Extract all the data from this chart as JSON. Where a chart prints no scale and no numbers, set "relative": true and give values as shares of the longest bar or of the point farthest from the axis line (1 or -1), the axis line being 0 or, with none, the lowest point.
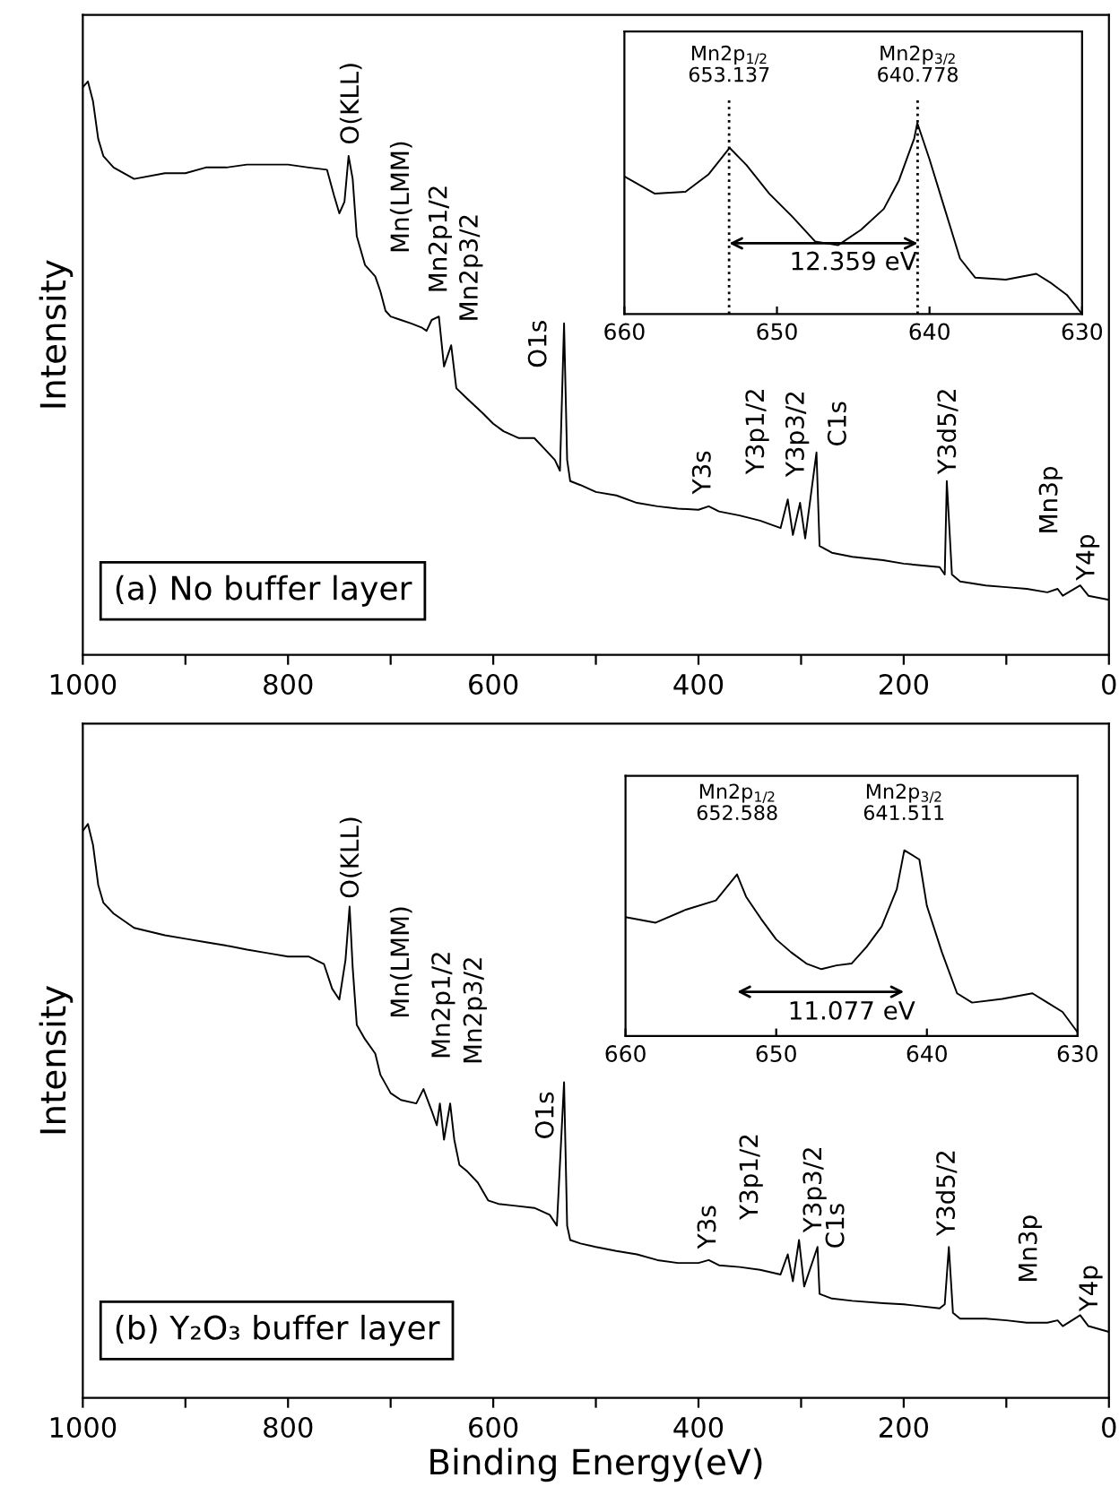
{
  "chart_data": [
    {
      "type": "line",
      "relative": true,
      "ylabel": "Intensity",
      "xlim": [
        1000,
        0
      ],
      "xticks": [
        1000,
        {
          "value": 900,
          "label": null
        },
        800,
        {
          "value": 700,
          "label": null
        },
        600,
        {
          "value": 500,
          "label": null
        },
        400,
        {
          "value": 300,
          "label": null
        },
        200,
        {
          "value": 100,
          "label": null
        },
        0
      ],
      "tick_labels": "x",
      "grid": false,
      "legend": false,
      "series": [
        {
          "color": "#000000",
          "x": [
            1000,
            995,
            990,
            985,
            980,
            970,
            950,
            920,
            900,
            880,
            860,
            840,
            820,
            800,
            780,
            762,
            755,
            750,
            745,
            741,
            737,
            733,
            725,
            715,
            710,
            705,
            700,
            690,
            680,
            670,
            665,
            660,
            653,
            648,
            641,
            636,
            625,
            610,
            600,
            590,
            575,
            560,
            550,
            540,
            535,
            531,
            528,
            525,
            515,
            500,
            480,
            460,
            440,
            420,
            400,
            390,
            380,
            360,
            340,
            320,
            313,
            308,
            301,
            296,
            285,
            282,
            270,
            250,
            220,
            200,
            165,
            160,
            158,
            153,
            145,
            120,
            100,
            80,
            60,
            50,
            45,
            28,
            20,
            0
          ],
          "values": [
            0.99,
            1.0,
            0.965,
            0.9,
            0.87,
            0.85,
            0.83,
            0.84,
            0.84,
            0.85,
            0.85,
            0.855,
            0.855,
            0.855,
            0.85,
            0.846,
            0.8,
            0.77,
            0.79,
            0.87,
            0.83,
            0.73,
            0.68,
            0.66,
            0.634,
            0.6,
            0.59,
            0.584,
            0.578,
            0.571,
            0.565,
            0.584,
            0.59,
            0.503,
            0.54,
            0.465,
            0.446,
            0.421,
            0.403,
            0.39,
            0.378,
            0.378,
            0.359,
            0.34,
            0.321,
            0.578,
            0.34,
            0.303,
            0.296,
            0.284,
            0.278,
            0.265,
            0.259,
            0.255,
            0.253,
            0.259,
            0.25,
            0.243,
            0.234,
            0.221,
            0.271,
            0.209,
            0.265,
            0.203,
            0.353,
            0.19,
            0.178,
            0.171,
            0.165,
            0.159,
            0.153,
            0.14,
            0.303,
            0.14,
            0.128,
            0.121,
            0.118,
            0.115,
            0.109,
            0.115,
            0.103,
            0.121,
            0.103,
            0.096
          ]
        }
      ],
      "annotations": [
        "(a) No buffer layer",
        "O(KLL)",
        "Mn(LMM)",
        "Mn2p1/2",
        "Mn2p3/2",
        "O1s",
        "Y3s",
        "Y3p1/2",
        "Y3p3/2",
        "C1s",
        "Y3d5/2",
        "Mn3p",
        "Y4p"
      ]
    },
    {
      "type": "line",
      "relative": true,
      "xlim": [
        660,
        630
      ],
      "xticks": [
        660,
        650,
        640,
        630
      ],
      "tick_labels": "x",
      "grid": false,
      "legend": false,
      "series": [
        {
          "color": "#000000",
          "x": [
            660,
            658,
            656,
            654.5,
            653.1,
            652,
            650.5,
            649,
            647.5,
            646,
            644.5,
            643,
            642,
            641,
            640.8,
            640,
            639,
            638,
            637,
            635,
            633,
            632,
            631,
            630
          ],
          "values": [
            0.72,
            0.63,
            0.64,
            0.73,
            0.87,
            0.78,
            0.63,
            0.51,
            0.38,
            0.36,
            0.44,
            0.55,
            0.7,
            0.92,
            1.0,
            0.81,
            0.55,
            0.29,
            0.19,
            0.18,
            0.21,
            0.16,
            0.1,
            0.0
          ]
        }
      ],
      "ref_lines": [
        {
          "axis": "x",
          "value": 653.137,
          "line_style": "dotted",
          "color": "#000000"
        },
        {
          "axis": "x",
          "value": 640.778,
          "line_style": "dotted",
          "color": "#000000"
        }
      ],
      "annotations": [
        "Mn2p$_{1/2}$\n653.137",
        "Mn2p$_{3/2}$\n640.778",
        "12.359 eV"
      ]
    },
    {
      "type": "line",
      "relative": true,
      "ylabel": "Intensity",
      "xlabel": "Binding Energy(eV)",
      "xlim": [
        1000,
        0
      ],
      "xticks": [
        1000,
        {
          "value": 900,
          "label": null
        },
        800,
        {
          "value": 700,
          "label": null
        },
        600,
        {
          "value": 500,
          "label": null
        },
        400,
        {
          "value": 300,
          "label": null
        },
        200,
        {
          "value": 100,
          "label": null
        },
        0
      ],
      "tick_labels": "x",
      "grid": false,
      "legend": false,
      "series": [
        {
          "color": "#000000",
          "x": [
            1000,
            995,
            990,
            985,
            980,
            970,
            950,
            920,
            900,
            880,
            860,
            840,
            820,
            800,
            780,
            765,
            757,
            750,
            744,
            740,
            737,
            733,
            725,
            715,
            710,
            700,
            690,
            675,
            668,
            660,
            655,
            652,
            648,
            642,
            638,
            633,
            625,
            615,
            605,
            595,
            580,
            560,
            545,
            538,
            531,
            528,
            525,
            515,
            500,
            480,
            460,
            440,
            420,
            400,
            390,
            380,
            360,
            340,
            320,
            313,
            308,
            302,
            297,
            284,
            282,
            270,
            250,
            220,
            200,
            165,
            160,
            156,
            152,
            145,
            120,
            100,
            80,
            60,
            50,
            45,
            28,
            20,
            0
          ],
          "values": [
            0.988,
            1.0,
            0.963,
            0.894,
            0.863,
            0.844,
            0.819,
            0.806,
            0.8,
            0.794,
            0.788,
            0.781,
            0.775,
            0.769,
            0.769,
            0.756,
            0.713,
            0.694,
            0.763,
            0.856,
            0.75,
            0.65,
            0.625,
            0.6,
            0.563,
            0.531,
            0.519,
            0.513,
            0.538,
            0.5,
            0.475,
            0.513,
            0.45,
            0.513,
            0.45,
            0.406,
            0.394,
            0.375,
            0.344,
            0.338,
            0.335,
            0.331,
            0.319,
            0.3,
            0.55,
            0.3,
            0.275,
            0.269,
            0.263,
            0.256,
            0.25,
            0.24,
            0.235,
            0.235,
            0.24,
            0.231,
            0.228,
            0.223,
            0.215,
            0.25,
            0.203,
            0.275,
            0.194,
            0.263,
            0.181,
            0.173,
            0.169,
            0.165,
            0.163,
            0.156,
            0.163,
            0.263,
            0.148,
            0.138,
            0.138,
            0.135,
            0.131,
            0.131,
            0.135,
            0.125,
            0.144,
            0.125,
            0.115
          ]
        }
      ],
      "annotations": [
        "(b) Y₂O₃ buffer layer",
        "O(KLL)",
        "Mn(LMM)",
        "Mn2p1/2",
        "Mn2p3/2",
        "O1s",
        "Y3s",
        "Y3p1/2",
        "Y3p3/2",
        "C1s",
        "Y3d5/2",
        "Mn3p",
        "Y4p"
      ]
    },
    {
      "type": "line",
      "relative": true,
      "xlim": [
        660,
        630
      ],
      "xticks": [
        660,
        650,
        640,
        630
      ],
      "tick_labels": "x",
      "grid": false,
      "legend": false,
      "series": [
        {
          "color": "#000000",
          "x": [
            660,
            658,
            656,
            654,
            652.6,
            652,
            651,
            650,
            649,
            648,
            647,
            646,
            645,
            644,
            643,
            642,
            641.5,
            640.5,
            640,
            639,
            638,
            637,
            635,
            633,
            632,
            631,
            630
          ],
          "values": [
            0.64,
            0.61,
            0.68,
            0.73,
            0.87,
            0.75,
            0.63,
            0.52,
            0.45,
            0.39,
            0.36,
            0.38,
            0.39,
            0.48,
            0.59,
            0.79,
            1.0,
            0.95,
            0.7,
            0.45,
            0.23,
            0.18,
            0.2,
            0.23,
            0.18,
            0.13,
            0.02
          ]
        }
      ],
      "annotations": [
        "Mn2p$_{1/2}$\n652.588",
        "Mn2p$_{3/2}$\n641.511",
        "11.077 eV"
      ]
    }
  ]
}
